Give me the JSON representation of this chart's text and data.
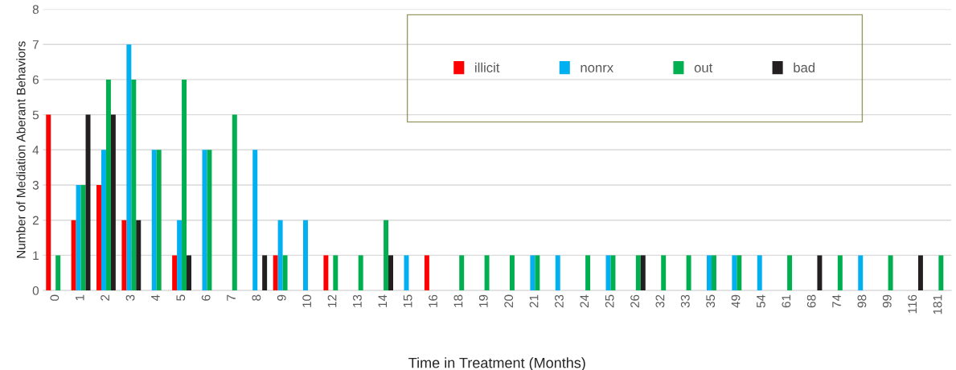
{
  "chart_data": {
    "type": "bar",
    "xlabel": "Time in Treatment (Months)",
    "ylabel": "Number of Mediation Aberant Behaviors",
    "categories": [
      "0",
      "1",
      "2",
      "3",
      "4",
      "5",
      "6",
      "7",
      "8",
      "9",
      "10",
      "12",
      "13",
      "14",
      "15",
      "16",
      "18",
      "19",
      "20",
      "21",
      "23",
      "24",
      "25",
      "26",
      "32",
      "33",
      "35",
      "49",
      "54",
      "61",
      "68",
      "74",
      "98",
      "99",
      "116",
      "181"
    ],
    "series": [
      {
        "name": "illicit",
        "color": "#ff0000",
        "values": [
          5,
          2,
          3,
          2,
          0,
          1,
          0,
          0,
          0,
          1,
          0,
          1,
          0,
          0,
          0,
          1,
          0,
          0,
          0,
          0,
          0,
          0,
          0,
          0,
          0,
          0,
          0,
          0,
          0,
          0,
          0,
          0,
          0,
          0,
          0,
          0
        ]
      },
      {
        "name": "nonrx",
        "color": "#00b0f0",
        "values": [
          0,
          3,
          4,
          7,
          4,
          2,
          4,
          0,
          4,
          2,
          2,
          0,
          0,
          0,
          1,
          0,
          0,
          0,
          0,
          1,
          1,
          0,
          1,
          0,
          0,
          0,
          1,
          1,
          1,
          0,
          0,
          0,
          1,
          0,
          0,
          0
        ]
      },
      {
        "name": "out",
        "color": "#00b050",
        "values": [
          1,
          3,
          6,
          6,
          4,
          6,
          4,
          5,
          0,
          1,
          0,
          1,
          1,
          2,
          0,
          0,
          1,
          1,
          1,
          1,
          0,
          1,
          1,
          1,
          1,
          1,
          1,
          1,
          0,
          1,
          0,
          1,
          0,
          1,
          0,
          1
        ]
      },
      {
        "name": "bad",
        "color": "#231f20",
        "values": [
          0,
          5,
          5,
          2,
          0,
          1,
          0,
          0,
          1,
          0,
          0,
          0,
          0,
          1,
          0,
          0,
          0,
          0,
          0,
          0,
          0,
          0,
          0,
          1,
          0,
          0,
          0,
          0,
          0,
          0,
          1,
          0,
          0,
          0,
          1,
          0
        ]
      }
    ],
    "ylim": [
      0,
      8
    ],
    "yticks": [
      0,
      1,
      2,
      3,
      4,
      5,
      6,
      7,
      8
    ],
    "grid": "y",
    "legend": "top right"
  }
}
